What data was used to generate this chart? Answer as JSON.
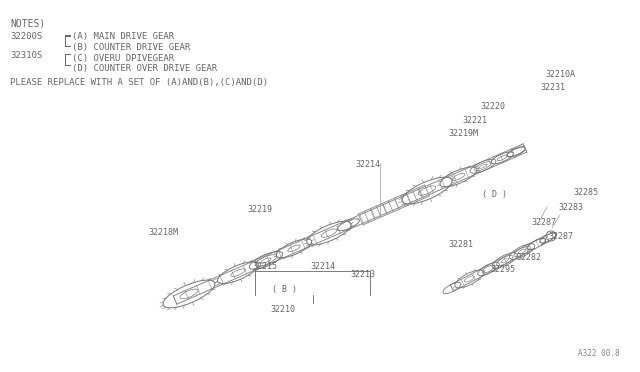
{
  "bg_color": "#ffffff",
  "fig_ref": "A322 00.8",
  "notes_header": "NOTES)",
  "label_32200S": "32200S",
  "label_32310S": "32310S",
  "note_A": "(A) MAIN DRIVE GEAR",
  "note_B": "(B) COUNTER DRIVE GEAR",
  "note_C": "(C) OVERU DPIVEGEAR",
  "note_D": "(D) COUNTER OVER DRIVE GEAR",
  "please_note": "PLEASE REPLACE WITH A SET OF (A)AND(B),(C)AND(D)",
  "gear_color": "#777777",
  "text_color": "#666666",
  "shaft_color": "#888888",
  "line_color": "#888888"
}
